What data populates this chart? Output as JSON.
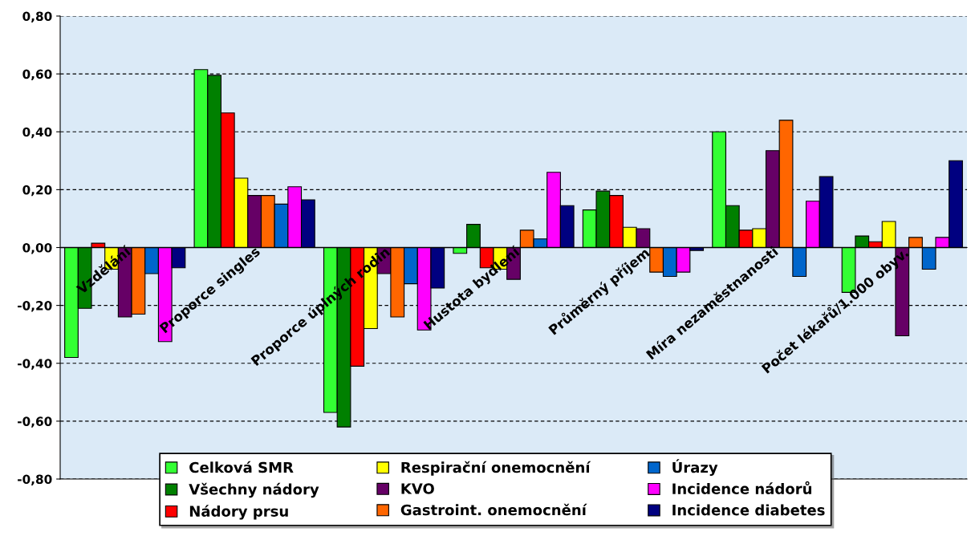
{
  "chart_data": {
    "type": "bar",
    "categories": [
      "Vzdělání",
      "Proporce singles",
      "Proporce úplných rodin",
      "Hustota bydlení",
      "Průměrný příjem",
      "Míra nezaměstnanosti",
      "Počet lékařů/1.000 obyv."
    ],
    "ylim": [
      -0.8,
      0.8
    ],
    "yticks": [
      {
        "value": -0.8,
        "label": "-0,80"
      },
      {
        "value": -0.6,
        "label": "-0,60"
      },
      {
        "value": -0.4,
        "label": "-0,40"
      },
      {
        "value": -0.2,
        "label": "-0,20"
      },
      {
        "value": 0,
        "label": "0,00"
      },
      {
        "value": 0.2,
        "label": "0,20"
      },
      {
        "value": 0.4,
        "label": "0,40"
      },
      {
        "value": 0.6,
        "label": "0,60"
      },
      {
        "value": 0.8,
        "label": "0,80"
      }
    ],
    "grid": "y",
    "legend": "bottom",
    "series": [
      {
        "name": "Celková SMR",
        "color": "#33ff33",
        "values": [
          -0.38,
          0.615,
          -0.57,
          -0.02,
          0.13,
          0.4,
          -0.155
        ]
      },
      {
        "name": "Všechny nádory",
        "color": "#008000",
        "values": [
          -0.21,
          0.595,
          -0.62,
          0.08,
          0.195,
          0.145,
          0.04
        ]
      },
      {
        "name": "Nádory prsu",
        "color": "#ff0000",
        "values": [
          0.015,
          0.465,
          -0.41,
          -0.07,
          0.18,
          0.06,
          0.02
        ]
      },
      {
        "name": "Respirační onemocnění",
        "color": "#ffff00",
        "values": [
          -0.075,
          0.24,
          -0.28,
          -0.075,
          0.07,
          0.065,
          0.09
        ]
      },
      {
        "name": "KVO",
        "color": "#660066",
        "values": [
          -0.24,
          0.18,
          -0.09,
          -0.11,
          0.065,
          0.335,
          -0.305
        ]
      },
      {
        "name": "Gastroint. onemocnění",
        "color": "#ff6600",
        "values": [
          -0.23,
          0.18,
          -0.24,
          0.06,
          -0.085,
          0.44,
          0.035
        ]
      },
      {
        "name": "Úrazy",
        "color": "#0066cc",
        "values": [
          -0.09,
          0.15,
          -0.125,
          0.03,
          -0.1,
          -0.1,
          -0.075
        ]
      },
      {
        "name": "Incidence nádorů",
        "color": "#ff00ff",
        "values": [
          -0.325,
          0.21,
          -0.285,
          0.26,
          -0.085,
          0.16,
          0.035
        ]
      },
      {
        "name": "Incidence diabetes",
        "color": "#000080",
        "values": [
          -0.07,
          0.165,
          -0.14,
          0.145,
          -0.01,
          0.245,
          0.3
        ]
      }
    ]
  }
}
